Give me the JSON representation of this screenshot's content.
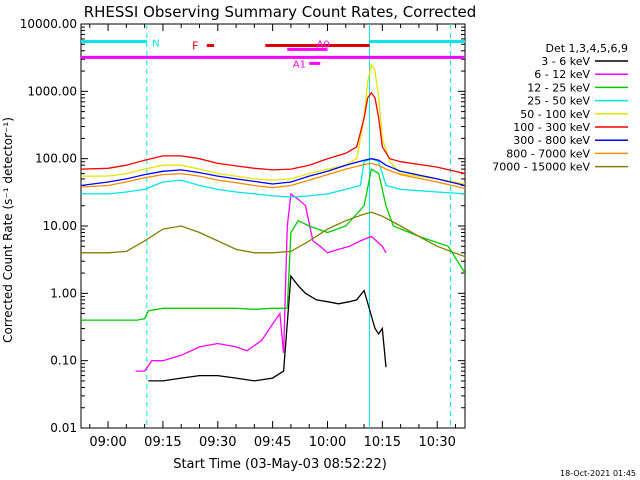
{
  "title": "RHESSI Observing Summary Count Rates, Corrected",
  "ylabel": "Corrected Count Rate (s⁻¹ detector⁻¹)",
  "xlabel": "Start Time (03-May-03 08:52:22)",
  "footer_date": "18-Oct-2021 01:45",
  "legend": {
    "header": "Det 1,3,4,5,6,9",
    "items": [
      {
        "label": "3 - 6 keV",
        "color": "#000000"
      },
      {
        "label": "6 - 12 keV",
        "color": "#ff00ff"
      },
      {
        "label": "12 - 25 keV",
        "color": "#00cc00"
      },
      {
        "label": "25 - 50 keV",
        "color": "#00e5e5"
      },
      {
        "label": "50 - 100 keV",
        "color": "#e5e500"
      },
      {
        "label": "100 - 300 keV",
        "color": "#ff0000"
      },
      {
        "label": "300 - 800 keV",
        "color": "#0000ff"
      },
      {
        "label": "800 - 7000 keV",
        "color": "#ff8c00"
      },
      {
        "label": "7000 - 15000 keV",
        "color": "#808000"
      }
    ]
  },
  "annotations": {
    "night_label": "N",
    "flare_label": "F",
    "attenuator_a0": "A0",
    "attenuator_a1": "A1"
  },
  "chart_data": {
    "type": "line",
    "xlim_minutes": [
      -7.4,
      97.6
    ],
    "ylim": [
      0.01,
      10000
    ],
    "y_scale": "log",
    "xticks": [
      {
        "label": "09:00",
        "value": 0
      },
      {
        "label": "09:15",
        "value": 15
      },
      {
        "label": "09:30",
        "value": 30
      },
      {
        "label": "09:45",
        "value": 45
      },
      {
        "label": "10:00",
        "value": 60
      },
      {
        "label": "10:15",
        "value": 75
      },
      {
        "label": "10:30",
        "value": 90
      }
    ],
    "yticks": [
      {
        "label": "0.01",
        "value": 0.01
      },
      {
        "label": "0.10",
        "value": 0.1
      },
      {
        "label": "1.00",
        "value": 1
      },
      {
        "label": "10.00",
        "value": 10
      },
      {
        "label": "100.00",
        "value": 100
      },
      {
        "label": "1000.00",
        "value": 1000
      },
      {
        "label": "10000.00",
        "value": 10000
      }
    ],
    "vlines_minutes": [
      10.6,
      71.5,
      93.6
    ],
    "series": [
      {
        "name": "3 - 6 keV",
        "color": "#000000",
        "x": [
          11,
          15,
          20,
          25,
          30,
          35,
          40,
          45,
          48,
          50,
          52,
          54,
          57,
          60,
          63,
          66,
          68,
          70,
          73,
          74,
          75,
          76
        ],
        "y": [
          0.05,
          0.05,
          0.055,
          0.06,
          0.06,
          0.055,
          0.05,
          0.055,
          0.07,
          1.8,
          1.3,
          1.0,
          0.8,
          0.75,
          0.7,
          0.75,
          0.8,
          1.1,
          0.3,
          0.25,
          0.3,
          0.08
        ]
      },
      {
        "name": "6 - 12 keV",
        "color": "#ff00ff",
        "x": [
          7.5,
          10,
          12,
          15,
          20,
          25,
          30,
          35,
          38,
          42,
          45,
          47,
          48,
          49,
          50,
          52,
          54,
          56,
          58,
          60,
          63,
          66,
          69,
          72,
          75,
          76
        ],
        "y": [
          0.07,
          0.07,
          0.1,
          0.1,
          0.12,
          0.16,
          0.18,
          0.16,
          0.14,
          0.2,
          0.35,
          0.5,
          0.13,
          10,
          30,
          25,
          20,
          6,
          5,
          4,
          4.5,
          5,
          6,
          7,
          5,
          4
        ]
      },
      {
        "name": "12 - 25 keV",
        "color": "#00cc00",
        "x": [
          -7.4,
          2,
          8,
          10,
          11,
          15,
          20,
          25,
          30,
          35,
          40,
          45,
          49,
          50,
          52,
          55,
          60,
          65,
          70,
          72,
          74,
          76,
          78,
          85,
          93,
          97.6
        ],
        "y": [
          0.4,
          0.4,
          0.4,
          0.42,
          0.55,
          0.6,
          0.6,
          0.6,
          0.6,
          0.6,
          0.58,
          0.6,
          0.6,
          8,
          12,
          10,
          8,
          10,
          20,
          70,
          60,
          20,
          10,
          7,
          5,
          2
        ]
      },
      {
        "name": "25 - 50 keV",
        "color": "#00e5e5",
        "x": [
          -7.4,
          0,
          5,
          10,
          15,
          20,
          25,
          30,
          35,
          40,
          45,
          50,
          55,
          60,
          65,
          69,
          70,
          72,
          74,
          76,
          80,
          90,
          97.6
        ],
        "y": [
          30,
          30,
          32,
          35,
          45,
          48,
          40,
          35,
          32,
          30,
          28,
          27,
          28,
          30,
          35,
          40,
          90,
          100,
          90,
          40,
          35,
          32,
          30
        ]
      },
      {
        "name": "50 - 100 keV",
        "color": "#e5e500",
        "x": [
          -7.4,
          0,
          5,
          10,
          15,
          20,
          25,
          30,
          35,
          40,
          45,
          50,
          55,
          60,
          65,
          68,
          70,
          71,
          72,
          73,
          74,
          75,
          77,
          80,
          90,
          97.6
        ],
        "y": [
          55,
          55,
          60,
          70,
          80,
          80,
          70,
          60,
          55,
          50,
          48,
          50,
          60,
          70,
          80,
          100,
          400,
          1400,
          2500,
          2000,
          800,
          200,
          90,
          60,
          50,
          42
        ]
      },
      {
        "name": "100 - 300 keV",
        "color": "#ff0000",
        "x": [
          -7.4,
          0,
          5,
          10,
          15,
          20,
          25,
          30,
          35,
          40,
          45,
          50,
          55,
          60,
          65,
          68,
          70,
          71,
          72,
          73,
          74,
          75,
          77,
          80,
          90,
          97.6
        ],
        "y": [
          70,
          72,
          80,
          95,
          110,
          110,
          100,
          85,
          78,
          72,
          68,
          70,
          80,
          100,
          120,
          150,
          400,
          800,
          950,
          800,
          400,
          150,
          100,
          90,
          75,
          60
        ]
      },
      {
        "name": "300 - 800 keV",
        "color": "#0000ff",
        "x": [
          -7.4,
          0,
          5,
          10,
          15,
          20,
          25,
          30,
          35,
          40,
          45,
          50,
          55,
          60,
          65,
          70,
          72,
          74,
          76,
          80,
          90,
          97.6
        ],
        "y": [
          40,
          45,
          50,
          58,
          65,
          68,
          62,
          55,
          50,
          46,
          42,
          45,
          55,
          65,
          80,
          95,
          100,
          95,
          80,
          65,
          50,
          40
        ]
      },
      {
        "name": "800 - 7000 keV",
        "color": "#ff8c00",
        "x": [
          -7.4,
          0,
          5,
          10,
          15,
          20,
          25,
          30,
          35,
          40,
          45,
          50,
          55,
          60,
          65,
          70,
          72,
          74,
          76,
          80,
          90,
          97.6
        ],
        "y": [
          38,
          40,
          45,
          52,
          58,
          60,
          55,
          48,
          44,
          40,
          37,
          40,
          48,
          58,
          70,
          82,
          85,
          80,
          70,
          58,
          45,
          36
        ]
      },
      {
        "name": "7000 - 15000 keV",
        "color": "#808000",
        "x": [
          -7.4,
          0,
          5,
          10,
          15,
          20,
          25,
          30,
          35,
          40,
          45,
          50,
          55,
          60,
          65,
          70,
          72,
          75,
          80,
          85,
          90,
          97.6
        ],
        "y": [
          4,
          4,
          4.2,
          6,
          9,
          10,
          8,
          6,
          4.5,
          4,
          4,
          4.2,
          6,
          9,
          12,
          15,
          16,
          14,
          10,
          7,
          5,
          3.5
        ]
      }
    ],
    "bars": [
      {
        "label": "N",
        "color": "#00e5e5",
        "y": 5500,
        "segments": [
          [
            -7.4,
            10.6
          ],
          [
            71.5,
            97.6
          ]
        ]
      },
      {
        "label": "",
        "color": "#ff00ff",
        "y": 3200,
        "segments": [
          [
            -7.4,
            97.6
          ]
        ]
      },
      {
        "label": "F",
        "color": "#dd0000",
        "y": 4800,
        "segments": [
          [
            27,
            29
          ]
        ]
      },
      {
        "label": "",
        "color": "#dd0000",
        "y": 4800,
        "segments": [
          [
            43,
            71.5
          ]
        ]
      },
      {
        "label": "A0",
        "color": "#ff00ff",
        "y": 4200,
        "segments": [
          [
            49,
            60
          ]
        ]
      },
      {
        "label": "A1",
        "color": "#ff00ff",
        "y": 2600,
        "segments": [
          [
            55,
            58
          ]
        ]
      }
    ]
  }
}
